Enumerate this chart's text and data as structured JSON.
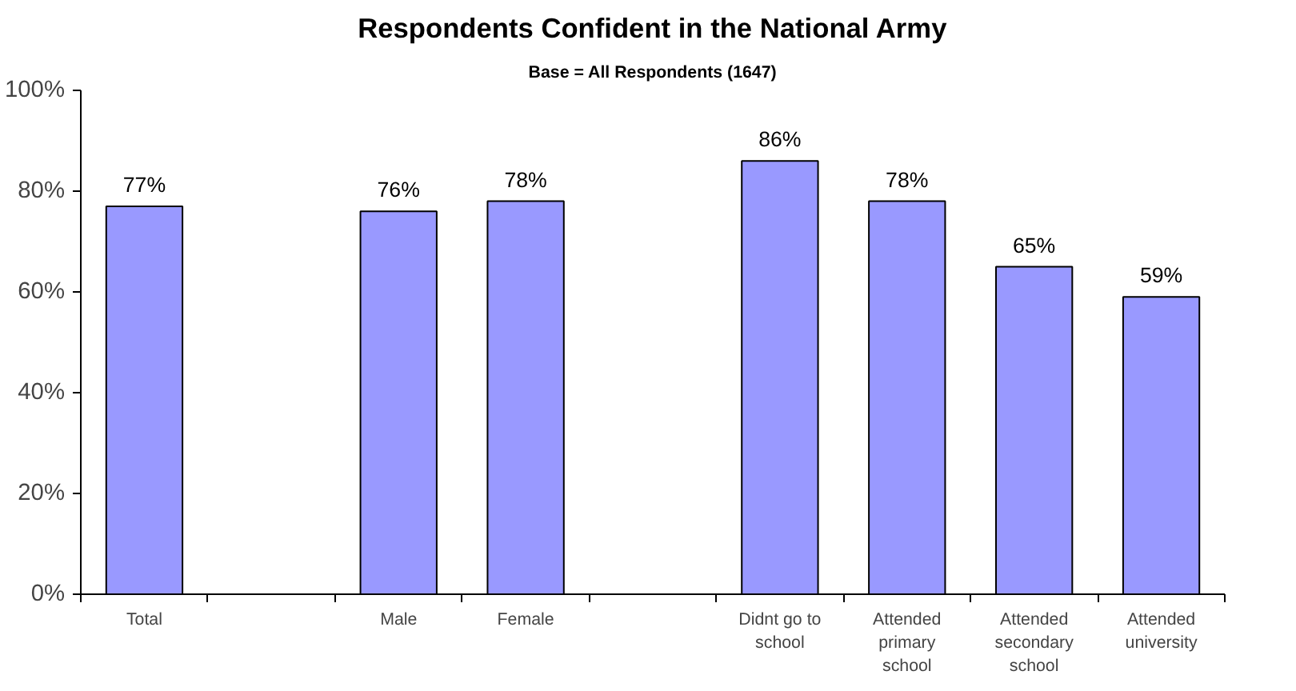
{
  "chart_data": {
    "type": "bar",
    "title": "Respondents Confident in the National Army",
    "subtitle": "Base = All Respondents (1647)",
    "categories": [
      "Total",
      null,
      "Male",
      "Female",
      null,
      "Didnt go to school",
      "Attended primary school",
      "Attended secondary school",
      "Attended university"
    ],
    "values": [
      77,
      null,
      76,
      78,
      null,
      86,
      78,
      65,
      59
    ],
    "value_labels": [
      "77%",
      null,
      "76%",
      "78%",
      null,
      "86%",
      "78%",
      "65%",
      "59%"
    ],
    "color": "#9999ff",
    "ylim": [
      0,
      100
    ],
    "yticks": [
      {
        "value": 0,
        "label": "0%"
      },
      {
        "value": 20,
        "label": "20%"
      },
      {
        "value": 40,
        "label": "40%"
      },
      {
        "value": 60,
        "label": "60%"
      },
      {
        "value": 80,
        "label": "80%"
      },
      {
        "value": 100,
        "label": "100%"
      }
    ],
    "grid": false
  }
}
